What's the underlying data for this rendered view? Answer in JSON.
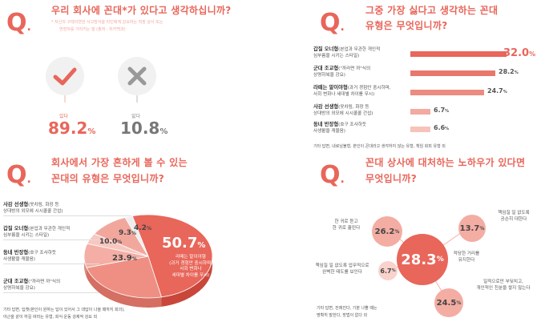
{
  "colors": {
    "accent": "#e8665a",
    "light": "#f6c3ba",
    "mid": "#ef8f83",
    "dark": "#d94b3f"
  },
  "q_mark": "Q",
  "panel1": {
    "title": "우리 회사에 꼰대*가 있다고 생각하십니까?",
    "note_line1": "* 자신의 구태의연한 사고방식을 타인에게 강요하는 직장 상사 또는",
    "note_line2": "연장자를 가리키는 말 (출처 : 위키백과)",
    "yes": {
      "label": "있다",
      "value": "89.2",
      "unit": "%",
      "icon": "check-icon"
    },
    "no": {
      "label": "없다",
      "value": "10.8",
      "unit": "%",
      "icon": "cross-icon"
    }
  },
  "panel2": {
    "title_line1": "그중 가장 싫다고 생각하는 꼰대",
    "title_line2": "유형은 무엇입니까?",
    "rows": [
      {
        "name": "갑질 오너형",
        "desc1": "(본업과 무관한 개인적",
        "desc2": "심부름을 시키는 스타일)",
        "value": "32.0",
        "unit": "%",
        "ratio": 1.0
      },
      {
        "name": "군대 조교형",
        "desc1": "(\"까라면 까\"식의",
        "desc2": "상명하복을 강요)",
        "value": "28.2",
        "unit": "%",
        "ratio": 0.88
      },
      {
        "name": "라떼는 말이야형",
        "desc1": "(과거 경험만 중시하며,",
        "desc2": "사회 변화나 세대별 차이를 무시)",
        "value": "24.7",
        "unit": "%",
        "ratio": 0.77
      },
      {
        "name": "사감 선생형",
        "desc1": "(옷차림, 화장 등",
        "desc2": "상대방의 외모에 시시콜콜 간섭)",
        "value": "6.7",
        "unit": "%",
        "ratio": 0.21
      },
      {
        "name": "동네 반장형",
        "desc1": "(호구 조사하듯",
        "desc2": "사생활을 캐물음)",
        "value": "6.6",
        "unit": "%",
        "ratio": 0.21
      }
    ],
    "footnote": "기타 답변, 내로남불형, 본인이 꼰대라고 생각하지 않는 유형, 책임 회피 유형 외"
  },
  "panel3": {
    "title_line1": "회사에서 가장 흔하게 볼 수 있는",
    "title_line2": "꼰대의 유형은 무엇입니까?",
    "chart_data": {
      "type": "pie",
      "categories": [
        "라떼는 말이야형",
        "군대 조교형",
        "갑질 오너형",
        "사감 선생형",
        "동네 반장형",
        "기타"
      ],
      "values": [
        50.7,
        23.9,
        9.3,
        4.2,
        10.0,
        1.9
      ]
    },
    "main_value": "50.7",
    "main_unit": "%",
    "main_label1": "라떼는 말이야형",
    "main_label2": "(과거 경험만 중시하며,",
    "main_label3": "사회 변화나",
    "main_label4": "세대별 차이를 무시)",
    "v239": "23.9",
    "v93": "9.3",
    "v42": "4.2",
    "v100": "10.0",
    "pct": "%",
    "legend": [
      {
        "name": "사감 선생형",
        "desc1": "(옷차림, 화장 등",
        "desc2": "상대방의 외모에 시시콜콜 간섭)"
      },
      {
        "name": "갑질 오너형",
        "desc1": "(본업과 무관한 개인적",
        "desc2": "심부름을 시키는 스타일)"
      },
      {
        "name": "동네 반장형",
        "desc1": "(호구 조사하듯",
        "desc2": "사생활을 캐물음)"
      },
      {
        "name": "군대 조교형",
        "desc1": "(\"까라면 까\"식의",
        "desc2": "상명하복을 강요)"
      }
    ],
    "footnote1": "기타 답변, 딥챗(본인이 원하는 답이 있어서 그 대답이 나올 때까지 회의),",
    "footnote2": "야근을 같이 하길 바라는 유형, 회식·운동 강제적 강요 외"
  },
  "panel4": {
    "title_line1": "꼰대 상사에 대처하는 노하우가 있다면",
    "title_line2": "무엇입니까?",
    "bubbles": [
      {
        "value": "28.3",
        "unit": "%",
        "l1": "적당한 거리를",
        "l2": "유지한다"
      },
      {
        "value": "26.2",
        "unit": "%",
        "l1": "한 귀로 듣고",
        "l2": "한 귀로 흘린다"
      },
      {
        "value": "13.7",
        "unit": "%",
        "l1": "책임질 일 없도록",
        "l2": "공손히 대한다"
      },
      {
        "value": "6.7",
        "unit": "%",
        "l1": "책임질 일 없도록 업무적으로",
        "l2": "완벽한 태도를 보인다"
      },
      {
        "value": "24.5",
        "unit": "%",
        "l1": "일적으로만 부딪치고,",
        "l2": "개인적인 친분을 쌓지 않는다"
      }
    ],
    "footnote1": "기타 답변, 전례진다, 기분 나쁠 때는",
    "footnote2": "명확히 말한다, 방법이 없다 외"
  }
}
